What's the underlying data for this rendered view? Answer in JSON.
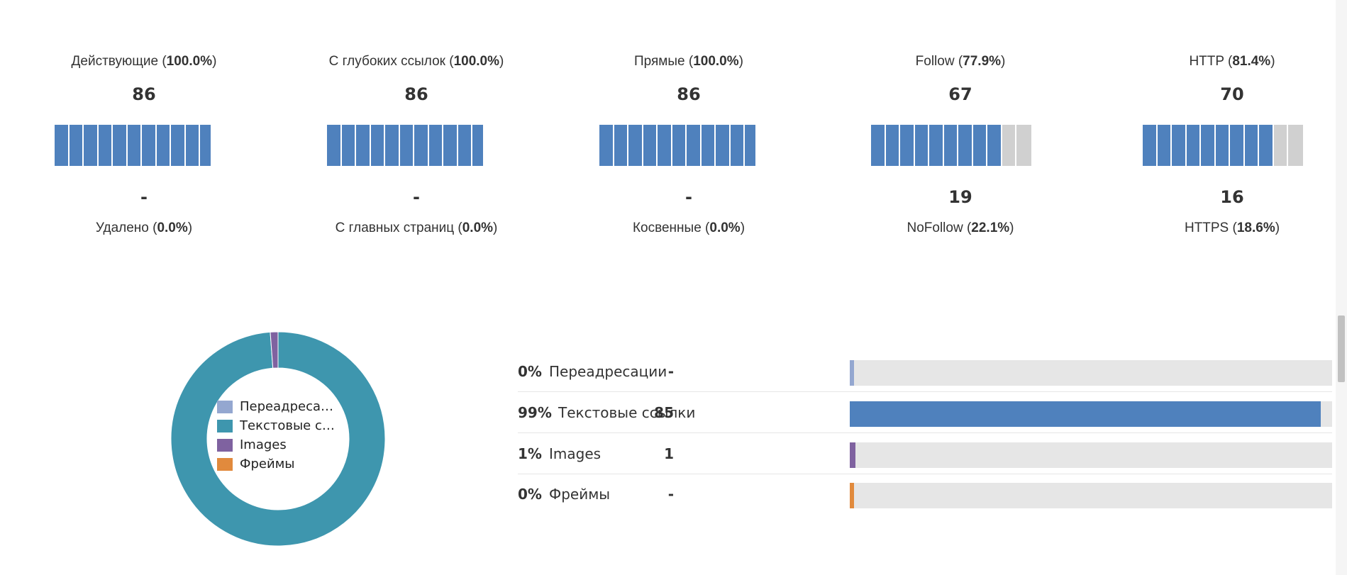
{
  "stats": [
    {
      "top_name": "Действующие",
      "top_pct": "100.0%",
      "top_value": "86",
      "bottom_value": "-",
      "bottom_name": "Удалено",
      "bottom_pct": "0.0%",
      "filled_fraction": 1.0
    },
    {
      "top_name": "С глубоких ссылок",
      "top_pct": "100.0%",
      "top_value": "86",
      "bottom_value": "-",
      "bottom_name": "С главных страниц",
      "bottom_pct": "0.0%",
      "filled_fraction": 1.0
    },
    {
      "top_name": "Прямые",
      "top_pct": "100.0%",
      "top_value": "86",
      "bottom_value": "-",
      "bottom_name": "Косвенные",
      "bottom_pct": "0.0%",
      "filled_fraction": 1.0
    },
    {
      "top_name": "Follow",
      "top_pct": "77.9%",
      "top_value": "67",
      "bottom_value": "19",
      "bottom_name": "NoFollow",
      "bottom_pct": "22.1%",
      "filled_fraction": 0.779
    },
    {
      "top_name": "HTTP",
      "top_pct": "81.4%",
      "top_value": "70",
      "bottom_value": "16",
      "bottom_name": "HTTPS",
      "bottom_pct": "18.6%",
      "filled_fraction": 0.814
    }
  ],
  "colors": {
    "primary": "#4f81bd",
    "empty": "#d0d0d0",
    "track": "#e6e6e6"
  },
  "link_types": [
    {
      "pct": "0%",
      "name": "Переадресации",
      "legend_label": "Переадресац...",
      "count": "-",
      "value": 0,
      "color": "#94a7d0"
    },
    {
      "pct": "99%",
      "name": "Текстовые ссылки",
      "legend_label": "Текстовые сс...",
      "count": "85",
      "value": 85,
      "color": "#4f81bd",
      "donut_color": "#3e96ae"
    },
    {
      "pct": "1%",
      "name": "Images",
      "legend_label": "Images",
      "count": "1",
      "value": 1,
      "color": "#7f62a0"
    },
    {
      "pct": "0%",
      "name": "Фреймы",
      "legend_label": "Фреймы",
      "count": "-",
      "value": 0,
      "color": "#e18a3d"
    }
  ],
  "link_types_total": 86
}
